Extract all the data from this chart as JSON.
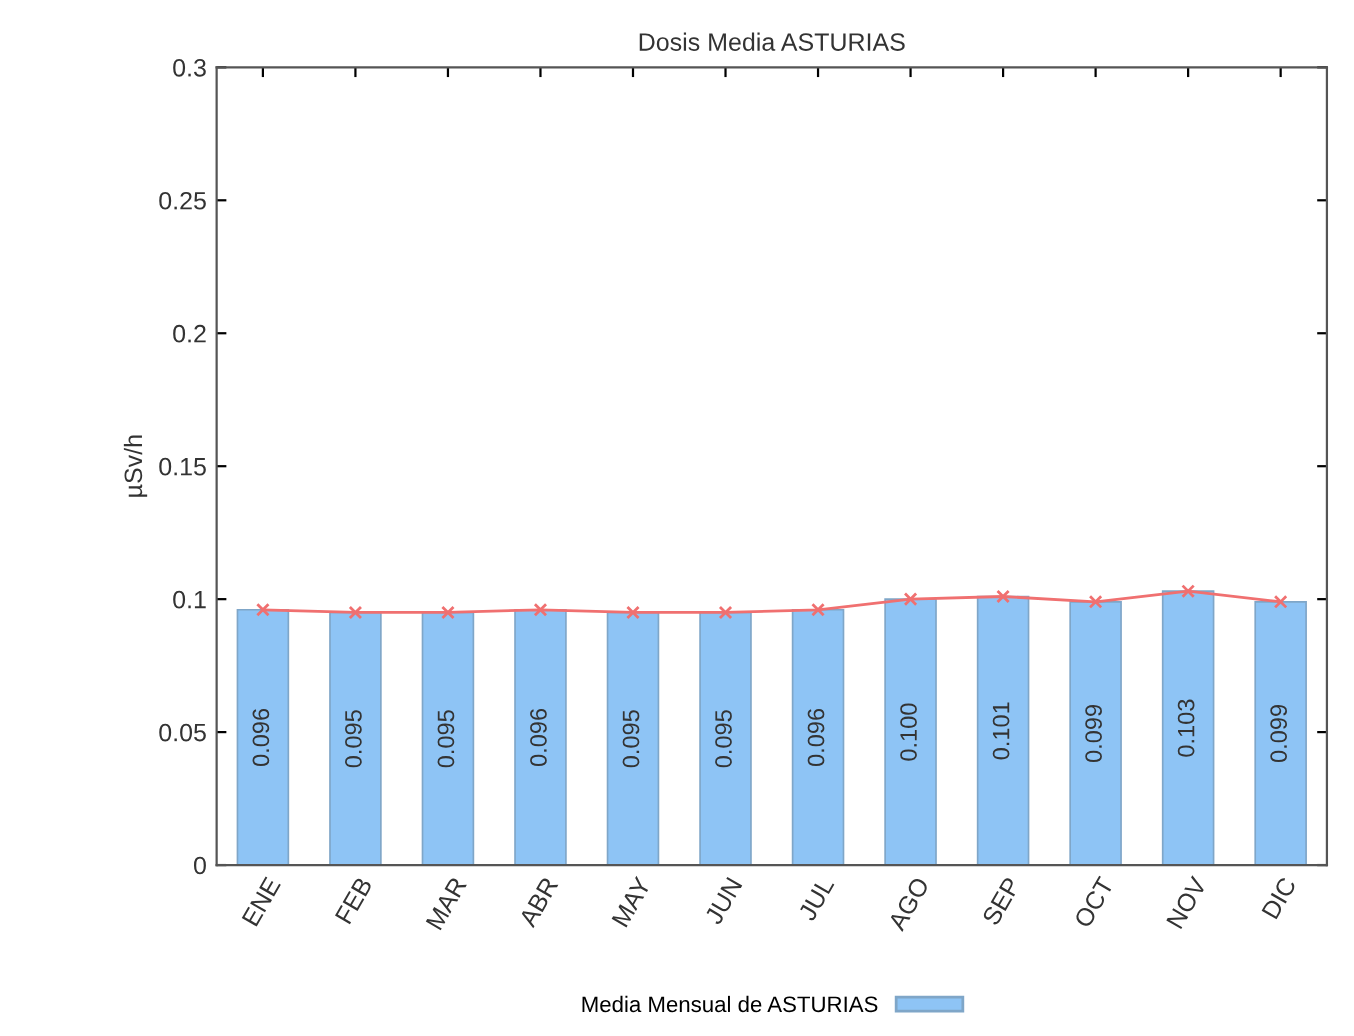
{
  "chart_data": {
    "type": "bar",
    "title": "Dosis Media ASTURIAS",
    "ylabel": "µSv/h",
    "categories": [
      "ENE",
      "FEB",
      "MAR",
      "ABR",
      "MAY",
      "JUN",
      "JUL",
      "AGO",
      "SEP",
      "OCT",
      "NOV",
      "DIC"
    ],
    "series": [
      {
        "name": "Media Mensual de ASTURIAS",
        "color": "#8ec4f5",
        "values": [
          0.096,
          0.095,
          0.095,
          0.096,
          0.095,
          0.095,
          0.096,
          0.1,
          0.101,
          0.099,
          0.103,
          0.099
        ],
        "value_labels": [
          "0.096",
          "0.095",
          "0.095",
          "0.096",
          "0.095",
          "0.095",
          "0.096",
          "0.100",
          "0.101",
          "0.099",
          "0.103",
          "0.099"
        ]
      },
      {
        "type": "line",
        "color": "#f07070",
        "marker": "cross",
        "values": [
          0.096,
          0.095,
          0.095,
          0.096,
          0.095,
          0.095,
          0.096,
          0.1,
          0.101,
          0.099,
          0.103,
          0.099
        ]
      }
    ],
    "ylim": [
      0,
      0.3
    ],
    "yticks": [
      0,
      0.05,
      0.1,
      0.15,
      0.2,
      0.25,
      0.3
    ],
    "grid": false,
    "legend": "bottom"
  }
}
